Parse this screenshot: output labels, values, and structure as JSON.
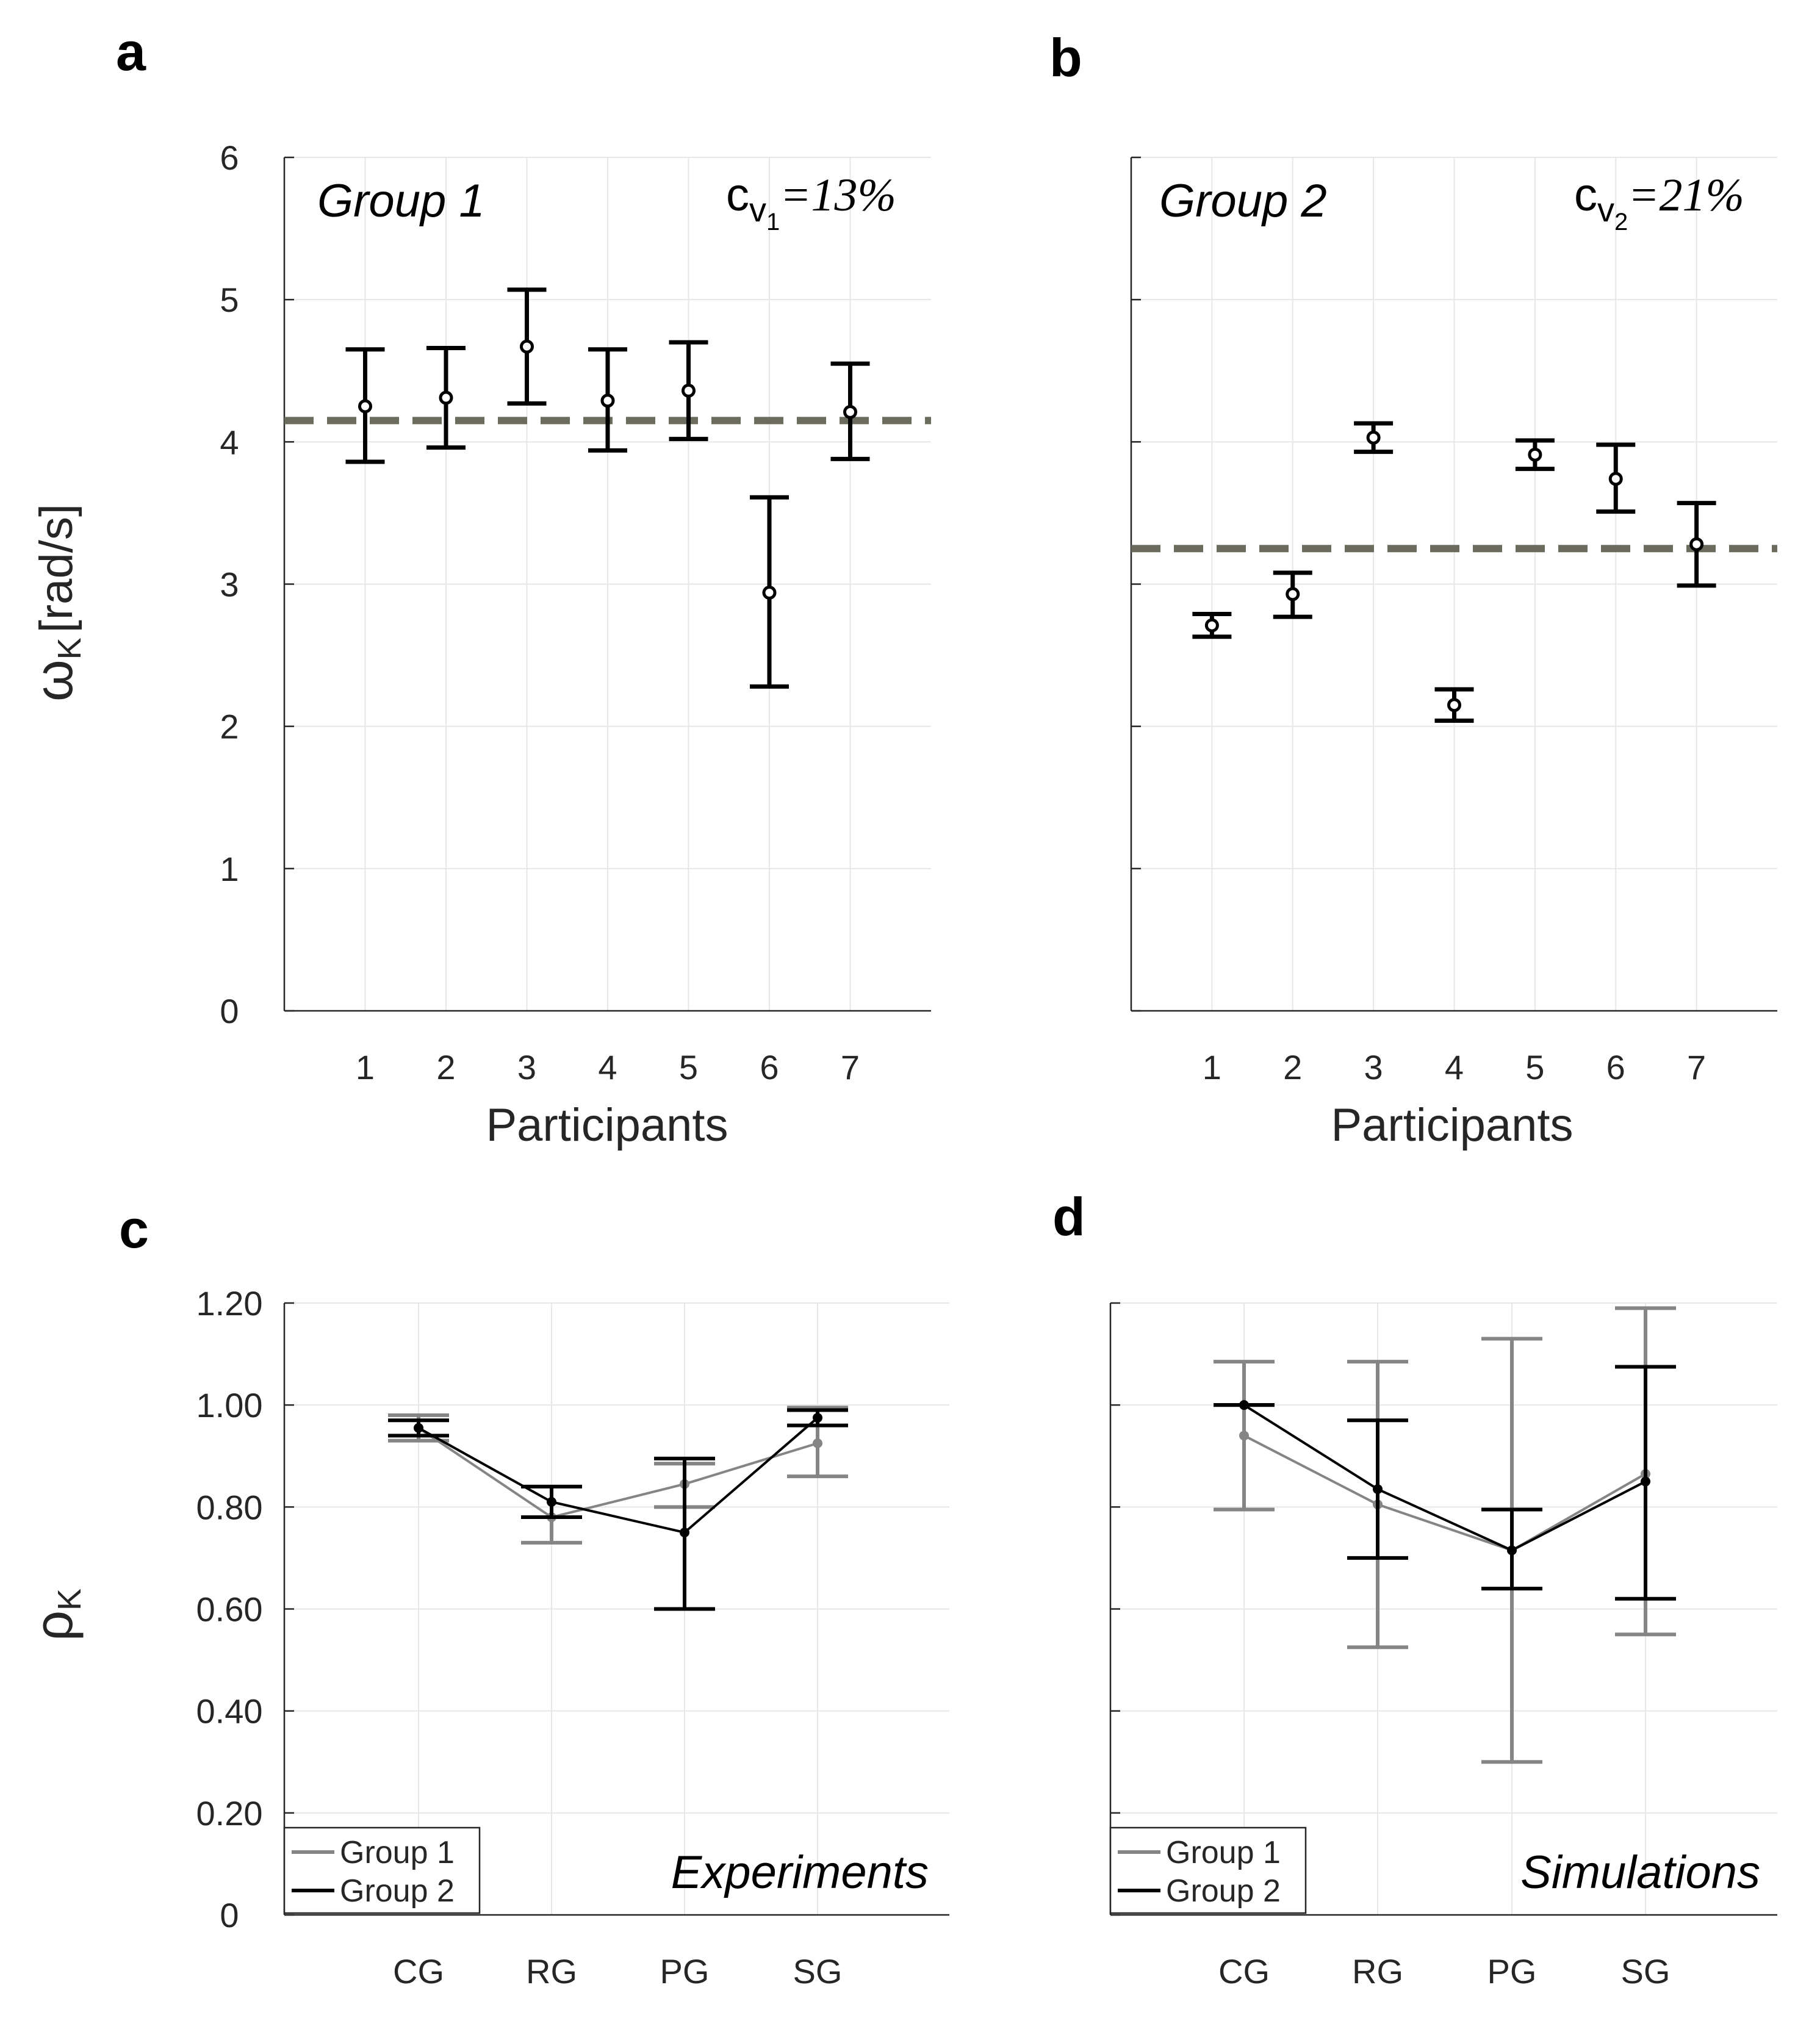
{
  "colors": {
    "group1": "#858585",
    "group2": "#000000",
    "mean_line": "#6b6b5e"
  },
  "panels": {
    "a": {
      "letter": "a",
      "group_title": "Group 1",
      "cv_symbol": "c",
      "cv_sub1": "v",
      "cv_sub2": "1",
      "cv_value": "=13%"
    },
    "b": {
      "letter": "b",
      "group_title": "Group 2",
      "cv_symbol": "c",
      "cv_sub1": "v",
      "cv_sub2": "2",
      "cv_value": "=21%"
    },
    "c": {
      "letter": "c",
      "corner_title": "Experiments"
    },
    "d": {
      "letter": "d",
      "corner_title": "Simulations"
    }
  },
  "labels": {
    "top_ylabel_main": "ω",
    "top_ylabel_sub": "K",
    "top_ylabel_unit": "[rad/s]",
    "bottom_ylabel_main": "ρ",
    "bottom_ylabel_sub": "K",
    "xlabel_top": "Participants"
  },
  "legend": {
    "group1": "Group 1",
    "group2": "Group 2"
  },
  "chart_data": [
    {
      "id": "a",
      "type": "scatter",
      "title": "Group 1",
      "xlabel": "Participants",
      "ylabel": "ωK [rad/s]",
      "x": [
        1,
        2,
        3,
        4,
        5,
        6,
        7
      ],
      "y": [
        4.25,
        4.31,
        4.67,
        4.29,
        4.36,
        2.94,
        4.21
      ],
      "err_low": [
        3.86,
        3.96,
        4.27,
        3.94,
        4.02,
        2.28,
        3.88
      ],
      "err_high": [
        4.65,
        4.66,
        5.07,
        4.65,
        4.7,
        3.61,
        4.55
      ],
      "mean_line": 4.15,
      "xlim": [
        0,
        8
      ],
      "ylim": [
        0,
        6
      ],
      "yticks": [
        "0",
        "1",
        "2",
        "3",
        "4",
        "5",
        "6"
      ],
      "xticks": [
        "1",
        "2",
        "3",
        "4",
        "5",
        "6",
        "7"
      ],
      "grid": true
    },
    {
      "id": "b",
      "type": "scatter",
      "title": "Group 2",
      "xlabel": "Participants",
      "ylabel": "",
      "x": [
        1,
        2,
        3,
        4,
        5,
        6,
        7
      ],
      "y": [
        2.71,
        2.93,
        4.03,
        2.15,
        3.91,
        3.74,
        3.28
      ],
      "err_low": [
        2.63,
        2.77,
        3.93,
        2.04,
        3.81,
        3.51,
        2.99
      ],
      "err_high": [
        2.79,
        3.08,
        4.13,
        2.26,
        4.01,
        3.98,
        3.57
      ],
      "mean_line": 3.25,
      "xlim": [
        0,
        8
      ],
      "ylim": [
        0,
        6
      ],
      "yticks": [],
      "xticks": [
        "1",
        "2",
        "3",
        "4",
        "5",
        "6",
        "7"
      ],
      "grid": true
    },
    {
      "id": "c",
      "type": "line",
      "title": "Experiments",
      "xlabel": "",
      "ylabel": "ρK",
      "categories": [
        "CG",
        "RG",
        "PG",
        "SG"
      ],
      "series": [
        {
          "name": "Group 1",
          "values": [
            0.955,
            0.78,
            0.845,
            0.925
          ],
          "err_low": [
            0.93,
            0.73,
            0.8,
            0.86
          ],
          "err_high": [
            0.98,
            0.84,
            0.885,
            0.995
          ]
        },
        {
          "name": "Group 2",
          "values": [
            0.955,
            0.81,
            0.75,
            0.975
          ],
          "err_low": [
            0.94,
            0.78,
            0.6,
            0.96
          ],
          "err_high": [
            0.97,
            0.84,
            0.895,
            0.99
          ]
        }
      ],
      "xlim": [
        0,
        5
      ],
      "ylim": [
        0,
        1.2
      ],
      "yticks": [
        "0",
        "0.20",
        "0.40",
        "0.60",
        "0.80",
        "1.00",
        "1.20"
      ],
      "legend": "bottom-left",
      "grid": true
    },
    {
      "id": "d",
      "type": "line",
      "title": "Simulations",
      "xlabel": "",
      "ylabel": "",
      "categories": [
        "CG",
        "RG",
        "PG",
        "SG"
      ],
      "series": [
        {
          "name": "Group 1",
          "values": [
            0.94,
            0.805,
            0.715,
            0.865
          ],
          "err_low": [
            0.795,
            0.525,
            0.3,
            0.55
          ],
          "err_high": [
            1.085,
            1.085,
            1.13,
            1.19
          ]
        },
        {
          "name": "Group 2",
          "values": [
            1.0,
            0.835,
            0.715,
            0.85
          ],
          "err_low": [
            1.0,
            0.7,
            0.64,
            0.62
          ],
          "err_high": [
            1.0,
            0.97,
            0.795,
            1.075
          ]
        }
      ],
      "xlim": [
        0,
        5
      ],
      "ylim": [
        0,
        1.2
      ],
      "yticks": [],
      "legend": "bottom-left",
      "grid": true
    }
  ]
}
